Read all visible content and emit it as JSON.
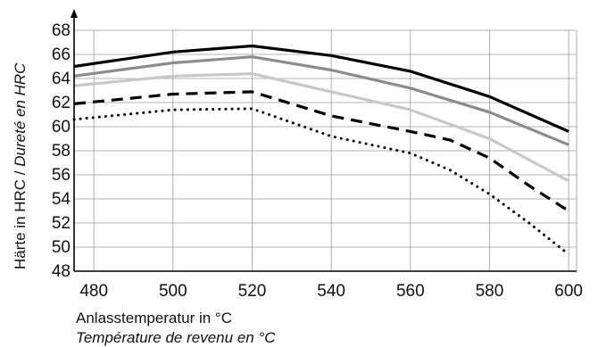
{
  "chart_data": {
    "type": "line",
    "xlabel": "Anlasstemperatur in °C",
    "xlabel_secondary": "Température de revenu en °C",
    "ylabel": "Härte in HRC / ",
    "ylabel_secondary": "Dureté en HRC",
    "xlim": [
      475,
      602
    ],
    "ylim": [
      48,
      68
    ],
    "x_ticks": [
      "480",
      "500",
      "520",
      "540",
      "560",
      "580",
      "600"
    ],
    "y_ticks": [
      "48",
      "50",
      "52",
      "54",
      "56",
      "58",
      "60",
      "62",
      "64",
      "66",
      "68"
    ],
    "grid": true,
    "legend": "none",
    "series": [
      {
        "color": "#000000",
        "style": "solid",
        "x": [
          475,
          500,
          520,
          540,
          560,
          580,
          600
        ],
        "y": [
          65.0,
          66.2,
          66.7,
          65.9,
          64.6,
          62.5,
          59.6
        ]
      },
      {
        "color": "#8c8c8c",
        "style": "solid",
        "x": [
          475,
          500,
          520,
          540,
          560,
          580,
          600
        ],
        "y": [
          64.2,
          65.3,
          65.8,
          64.7,
          63.2,
          61.2,
          58.5
        ]
      },
      {
        "color": "#c8c8c8",
        "style": "solid",
        "x": [
          475,
          500,
          520,
          540,
          560,
          580,
          600
        ],
        "y": [
          63.4,
          64.2,
          64.4,
          62.9,
          61.4,
          59.0,
          55.5
        ]
      },
      {
        "color": "#000000",
        "style": "dashed",
        "x": [
          475,
          500,
          520,
          540,
          560,
          570,
          580,
          590,
          600
        ],
        "y": [
          61.9,
          62.7,
          62.9,
          60.9,
          59.6,
          58.9,
          57.4,
          55.1,
          53.0
        ]
      },
      {
        "color": "#000000",
        "style": "dotted",
        "x": [
          475,
          500,
          520,
          540,
          560,
          570,
          580,
          590,
          600
        ],
        "y": [
          60.6,
          61.4,
          61.5,
          59.2,
          57.8,
          56.4,
          54.4,
          52.0,
          49.4
        ]
      }
    ]
  }
}
